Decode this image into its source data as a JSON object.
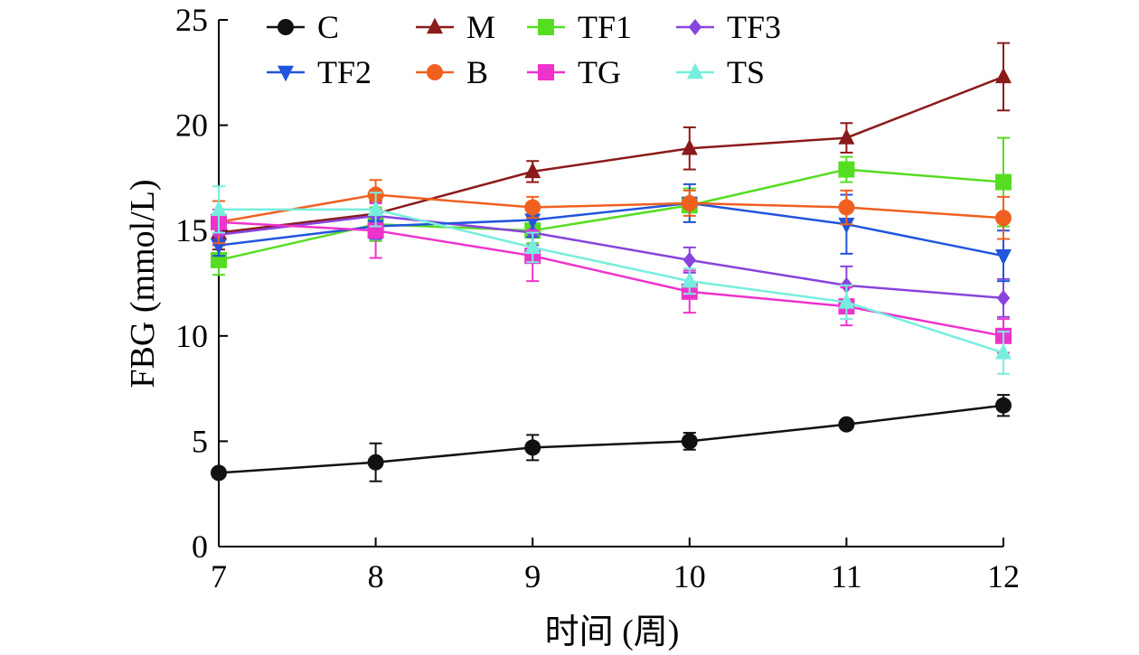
{
  "chart_data": {
    "type": "line",
    "title": "",
    "xlabel": "时间 (周)",
    "ylabel": "FBG (mmol/L)",
    "x": [
      7,
      8,
      9,
      10,
      11,
      12
    ],
    "xlim": [
      7,
      12
    ],
    "ylim": [
      0,
      25
    ],
    "xticks": [
      7,
      8,
      9,
      10,
      11,
      12
    ],
    "yticks": [
      0,
      5,
      10,
      15,
      20,
      25
    ],
    "grid": false,
    "legend_position": "top",
    "series": [
      {
        "name": "C",
        "color": "#111111",
        "marker": "circle",
        "values": [
          3.5,
          4.0,
          4.7,
          5.0,
          5.8,
          6.7
        ],
        "errors": [
          0.2,
          0.9,
          0.6,
          0.4,
          0.2,
          0.5
        ]
      },
      {
        "name": "M",
        "color": "#8b1a1a",
        "marker": "triangle-up",
        "values": [
          14.9,
          15.8,
          17.8,
          18.9,
          19.4,
          22.3
        ],
        "errors": [
          0.8,
          0.6,
          0.5,
          1.0,
          0.7,
          1.6
        ]
      },
      {
        "name": "TF1",
        "color": "#55dd22",
        "marker": "square",
        "values": [
          13.6,
          15.3,
          15.0,
          16.2,
          17.9,
          17.3
        ],
        "errors": [
          0.7,
          0.8,
          0.6,
          0.8,
          0.6,
          2.1
        ]
      },
      {
        "name": "TF3",
        "color": "#8844dd",
        "marker": "diamond",
        "values": [
          14.8,
          15.7,
          14.9,
          13.6,
          12.4,
          11.8
        ],
        "errors": [
          0.5,
          0.6,
          0.6,
          0.6,
          0.9,
          0.9
        ]
      },
      {
        "name": "TF2",
        "color": "#2255dd",
        "marker": "triangle-down",
        "values": [
          14.3,
          15.2,
          15.5,
          16.3,
          15.3,
          13.8
        ],
        "errors": [
          0.5,
          0.6,
          0.8,
          0.9,
          1.4,
          1.2
        ]
      },
      {
        "name": "B",
        "color": "#f06020",
        "marker": "circle",
        "values": [
          15.4,
          16.7,
          16.1,
          16.3,
          16.1,
          15.6
        ],
        "errors": [
          1.0,
          0.7,
          0.5,
          0.6,
          0.8,
          1.0
        ]
      },
      {
        "name": "TG",
        "color": "#ee33cc",
        "marker": "square",
        "values": [
          15.4,
          15.0,
          13.8,
          12.1,
          11.4,
          10.0
        ],
        "errors": [
          0.6,
          1.3,
          1.2,
          1.0,
          0.9,
          0.8
        ]
      },
      {
        "name": "TS",
        "color": "#77eedd",
        "marker": "triangle-up",
        "values": [
          16.0,
          16.0,
          14.2,
          12.6,
          11.6,
          9.2
        ],
        "errors": [
          1.1,
          0.8,
          0.7,
          0.6,
          0.8,
          1.0
        ]
      }
    ]
  }
}
